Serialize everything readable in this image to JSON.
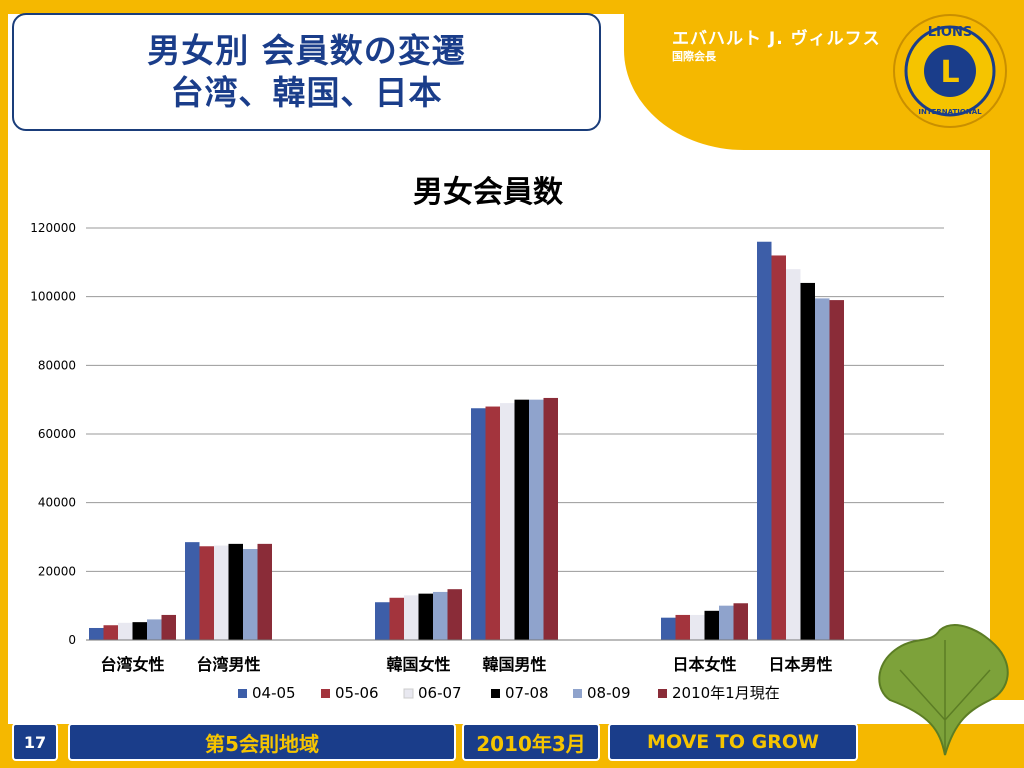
{
  "slide": {
    "title_line1": "男女別 会員数の変遷",
    "title_line2": "台湾、韓国、日本",
    "president_name": "エバハルト J. ヴィルフス",
    "president_role": "国際会長",
    "page_number": "17",
    "footer_district": "第5会則地域",
    "footer_date": "2010年3月",
    "footer_slogan": "MOVE TO GROW",
    "logo_text_top": "LIONS",
    "logo_letter": "L",
    "logo_text_bottom": "INTERNATIONAL"
  },
  "colors": {
    "navy": "#1a3d8a",
    "yellow": "#f5b800"
  },
  "chart_data": {
    "type": "bar",
    "title": "男女会員数",
    "xlabel": "",
    "ylabel": "",
    "ylim": [
      0,
      120000
    ],
    "yticks": [
      0,
      20000,
      40000,
      60000,
      80000,
      100000,
      120000
    ],
    "grid": true,
    "legend_position": "bottom",
    "categories": [
      "台湾女性",
      "台湾男性",
      "韓国女性",
      "韓国男性",
      "日本女性",
      "日本男性"
    ],
    "series": [
      {
        "name": "04-05",
        "color": "#3d5ea8",
        "values": [
          3500,
          28500,
          11000,
          67500,
          6500,
          116000
        ]
      },
      {
        "name": "05-06",
        "color": "#a3343d",
        "values": [
          4300,
          27300,
          12300,
          68000,
          7300,
          112000
        ]
      },
      {
        "name": "06-07",
        "color": "#e8e8f0",
        "values": [
          5000,
          27500,
          13000,
          69000,
          7300,
          108000
        ]
      },
      {
        "name": "07-08",
        "color": "#000000",
        "values": [
          5200,
          28000,
          13500,
          70000,
          8500,
          104000
        ]
      },
      {
        "name": "08-09",
        "color": "#8fa3cc",
        "values": [
          6000,
          26500,
          14000,
          70000,
          10000,
          99500
        ]
      },
      {
        "name": "2010年1月現在",
        "color": "#8a2c38",
        "values": [
          7300,
          28000,
          14800,
          70500,
          10700,
          99000
        ]
      }
    ]
  }
}
